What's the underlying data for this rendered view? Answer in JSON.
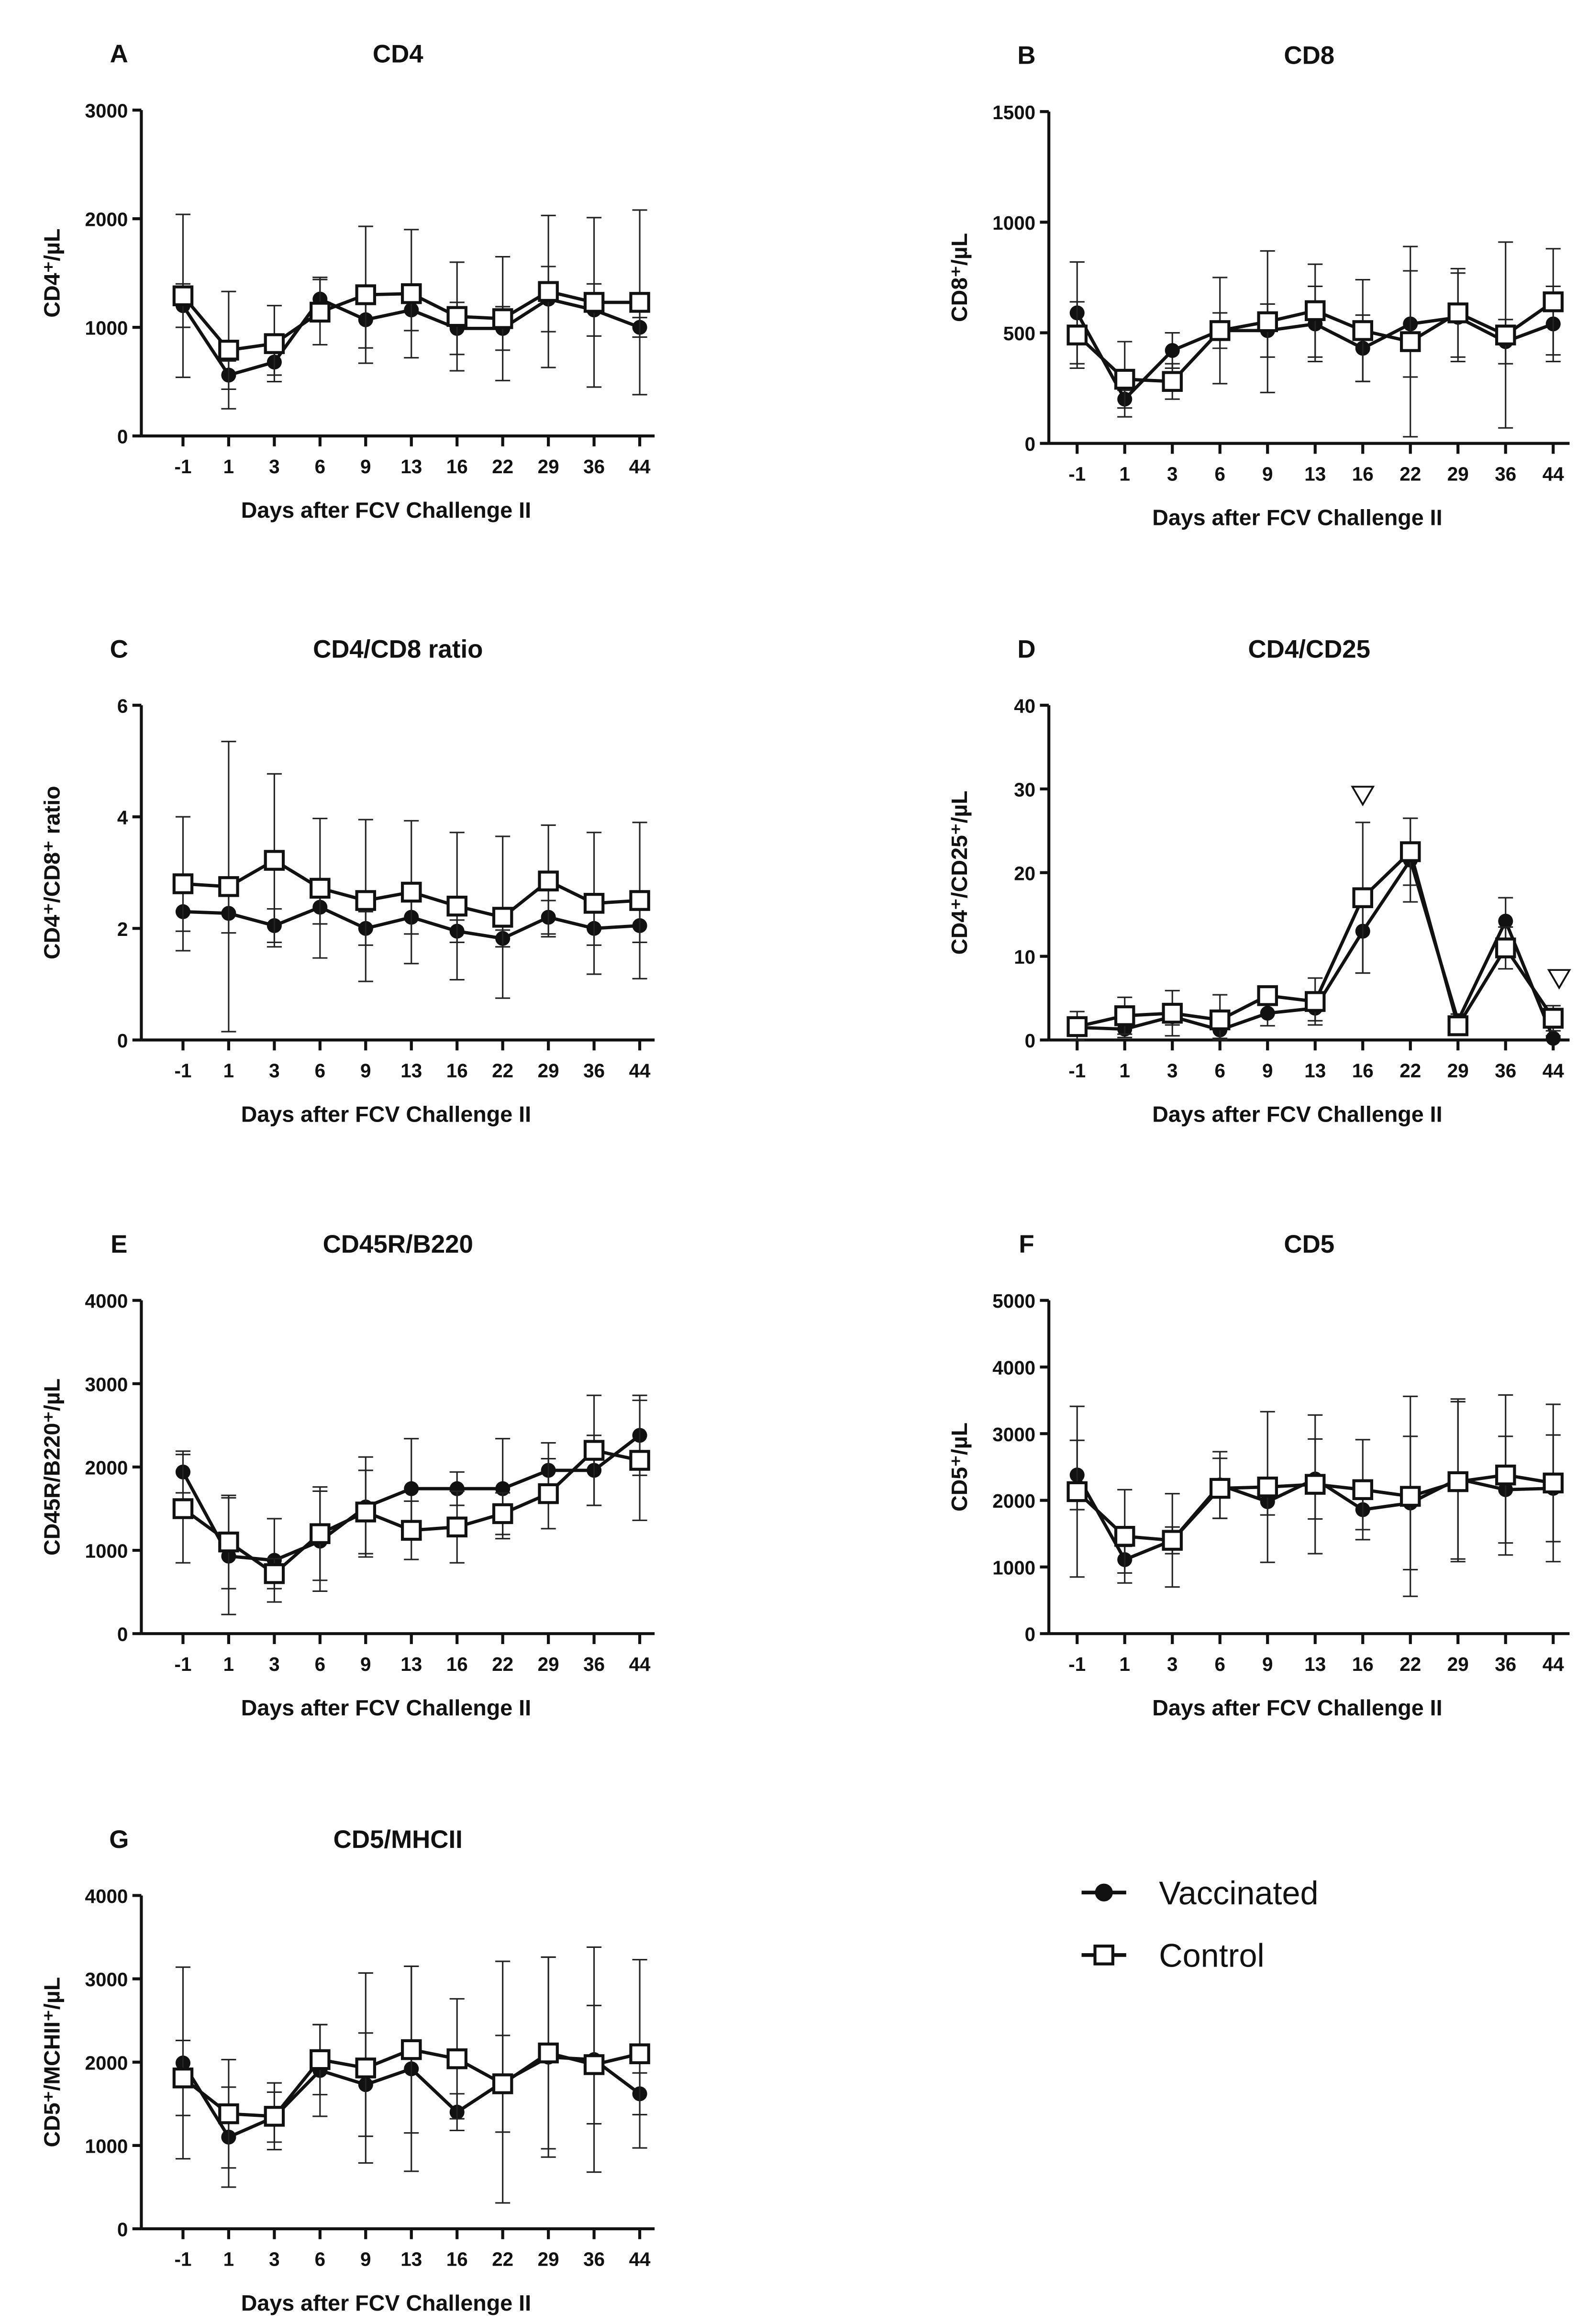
{
  "legend": {
    "items": [
      {
        "label": "Vaccinated",
        "marker": "filled-circle"
      },
      {
        "label": "Control",
        "marker": "open-square"
      }
    ]
  },
  "chart_data": [
    {
      "panel": "A",
      "title": "CD4",
      "type": "line",
      "xlabel": "Days after FCV Challenge II",
      "ylabel": "CD4⁺/µL",
      "categories": [
        "-1",
        "1",
        "3",
        "6",
        "9",
        "13",
        "16",
        "22",
        "29",
        "36",
        "44"
      ],
      "ylim": [
        0,
        3000
      ],
      "yticks": [
        0,
        1000,
        2000,
        3000
      ],
      "series": [
        {
          "name": "Vaccinated",
          "values": [
            1200,
            560,
            680,
            1260,
            1070,
            1160,
            990,
            990,
            1260,
            1160,
            1000
          ],
          "err": [
            200,
            130,
            120,
            200,
            260,
            190,
            240,
            200,
            300,
            240,
            90
          ]
        },
        {
          "name": "Control",
          "values": [
            1290,
            790,
            850,
            1140,
            1300,
            1310,
            1100,
            1080,
            1330,
            1230,
            1230
          ],
          "err": [
            750,
            540,
            350,
            300,
            630,
            590,
            500,
            570,
            700,
            780,
            850
          ]
        }
      ]
    },
    {
      "panel": "B",
      "title": "CD8",
      "type": "line",
      "xlabel": "Days after FCV Challenge II",
      "ylabel": "CD8⁺/µL",
      "categories": [
        "-1",
        "1",
        "3",
        "6",
        "9",
        "13",
        "16",
        "22",
        "29",
        "36",
        "44"
      ],
      "ylim": [
        0,
        1500
      ],
      "yticks": [
        0,
        500,
        1000,
        1500
      ],
      "series": [
        {
          "name": "Vaccinated",
          "values": [
            590,
            200,
            420,
            510,
            510,
            540,
            430,
            540,
            570,
            460,
            540
          ],
          "err": [
            230,
            40,
            80,
            80,
            120,
            170,
            150,
            240,
            200,
            100,
            170
          ]
        },
        {
          "name": "Control",
          "values": [
            490,
            290,
            280,
            510,
            550,
            600,
            510,
            460,
            590,
            490,
            640
          ],
          "err": [
            150,
            170,
            80,
            240,
            320,
            210,
            230,
            430,
            200,
            420,
            240
          ]
        }
      ]
    },
    {
      "panel": "C",
      "title": "CD4/CD8 ratio",
      "type": "line",
      "xlabel": "Days after FCV Challenge II",
      "ylabel": "CD4⁺/CD8⁺ ratio",
      "categories": [
        "-1",
        "1",
        "3",
        "6",
        "9",
        "13",
        "16",
        "22",
        "29",
        "36",
        "44"
      ],
      "ylim": [
        0,
        6
      ],
      "yticks": [
        0,
        2,
        4,
        6
      ],
      "series": [
        {
          "name": "Vaccinated",
          "values": [
            2.3,
            2.27,
            2.05,
            2.38,
            2.0,
            2.2,
            1.95,
            1.82,
            2.2,
            2.0,
            2.05
          ],
          "err": [
            0.35,
            0.35,
            0.3,
            0.3,
            0.3,
            0.3,
            0.2,
            0.15,
            0.3,
            0.3,
            0.3
          ]
        },
        {
          "name": "Control",
          "values": [
            2.8,
            2.75,
            3.22,
            2.72,
            2.5,
            2.65,
            2.4,
            2.2,
            2.85,
            2.45,
            2.5
          ],
          "err": [
            1.2,
            2.6,
            1.55,
            1.25,
            1.45,
            1.28,
            1.32,
            1.45,
            1.0,
            1.27,
            1.4
          ]
        }
      ]
    },
    {
      "panel": "D",
      "title": "CD4/CD25",
      "type": "line",
      "xlabel": "Days after FCV Challenge II",
      "ylabel": "CD4⁺/CD25⁺/µL",
      "categories": [
        "-1",
        "1",
        "3",
        "6",
        "9",
        "13",
        "16",
        "22",
        "29",
        "36",
        "44"
      ],
      "ylim": [
        0,
        40
      ],
      "yticks": [
        0,
        10,
        20,
        30,
        40
      ],
      "significance_markers": [
        "16",
        "44"
      ],
      "series": [
        {
          "name": "Vaccinated",
          "values": [
            1.5,
            1.3,
            2.8,
            1.2,
            3.2,
            3.8,
            13,
            21.5,
            2.3,
            14.2,
            0.2
          ],
          "err": [
            1,
            1,
            1,
            1,
            1.5,
            1.5,
            5,
            5,
            0.8,
            2.8,
            0.3
          ]
        },
        {
          "name": "Control",
          "values": [
            1.6,
            2.9,
            3.2,
            2.4,
            5.3,
            4.6,
            17,
            22.5,
            1.7,
            11,
            2.6
          ],
          "err": [
            1.8,
            2.2,
            2.7,
            3,
            1,
            2.8,
            9,
            4,
            0.8,
            2.5,
            1.5
          ]
        }
      ]
    },
    {
      "panel": "E",
      "title": "CD45R/B220",
      "type": "line",
      "xlabel": "Days after FCV Challenge II",
      "ylabel": "CD45R/B220⁺/µL",
      "categories": [
        "-1",
        "1",
        "3",
        "6",
        "9",
        "13",
        "16",
        "22",
        "29",
        "36",
        "44"
      ],
      "ylim": [
        0,
        4000
      ],
      "yticks": [
        0,
        1000,
        2000,
        3000,
        4000
      ],
      "series": [
        {
          "name": "Vaccinated",
          "values": [
            1940,
            930,
            880,
            1110,
            1520,
            1740,
            1740,
            1740,
            1960,
            1960,
            2380
          ],
          "err": [
            250,
            700,
            500,
            600,
            600,
            600,
            200,
            600,
            330,
            420,
            480
          ]
        },
        {
          "name": "Control",
          "values": [
            1500,
            1100,
            720,
            1200,
            1460,
            1240,
            1280,
            1440,
            1680,
            2200,
            2080
          ],
          "err": [
            650,
            560,
            180,
            560,
            500,
            350,
            430,
            250,
            420,
            660,
            720
          ]
        }
      ]
    },
    {
      "panel": "F",
      "title": "CD5",
      "type": "line",
      "xlabel": "Days after FCV Challenge II",
      "ylabel": "CD5⁺/µL",
      "categories": [
        "-1",
        "1",
        "3",
        "6",
        "9",
        "13",
        "16",
        "22",
        "29",
        "36",
        "44"
      ],
      "ylim": [
        0,
        5000
      ],
      "yticks": [
        0,
        1000,
        2000,
        3000,
        4000,
        5000
      ],
      "series": [
        {
          "name": "Vaccinated",
          "values": [
            2380,
            1110,
            1400,
            2230,
            1980,
            2320,
            1860,
            1960,
            2320,
            2160,
            2180
          ],
          "err": [
            520,
            200,
            200,
            500,
            200,
            600,
            300,
            1000,
            1200,
            800,
            800
          ]
        },
        {
          "name": "Control",
          "values": [
            2130,
            1460,
            1400,
            2180,
            2200,
            2240,
            2160,
            2060,
            2280,
            2380,
            2260
          ],
          "err": [
            1280,
            700,
            700,
            450,
            1130,
            1040,
            750,
            1500,
            1200,
            1200,
            1180
          ]
        }
      ]
    },
    {
      "panel": "G",
      "title": "CD5/MHCII",
      "type": "line",
      "xlabel": "Days after FCV Challenge II",
      "ylabel": "CD5⁺/MCHII⁺/µL",
      "categories": [
        "-1",
        "1",
        "3",
        "6",
        "9",
        "13",
        "16",
        "22",
        "29",
        "36",
        "44"
      ],
      "ylim": [
        0,
        4000
      ],
      "yticks": [
        0,
        1000,
        2000,
        3000,
        4000
      ],
      "series": [
        {
          "name": "Vaccinated",
          "values": [
            1990,
            1100,
            1340,
            1900,
            1730,
            1920,
            1400,
            1760,
            2060,
            2030,
            1620
          ],
          "err": [
            1150,
            600,
            300,
            550,
            620,
            1230,
            220,
            1450,
            1200,
            1350,
            250
          ]
        },
        {
          "name": "Control",
          "values": [
            1810,
            1380,
            1350,
            2030,
            1930,
            2150,
            2040,
            1740,
            2110,
            1970,
            2100
          ],
          "err": [
            450,
            650,
            400,
            420,
            1140,
            1000,
            720,
            580,
            1150,
            710,
            1130
          ]
        }
      ]
    }
  ]
}
